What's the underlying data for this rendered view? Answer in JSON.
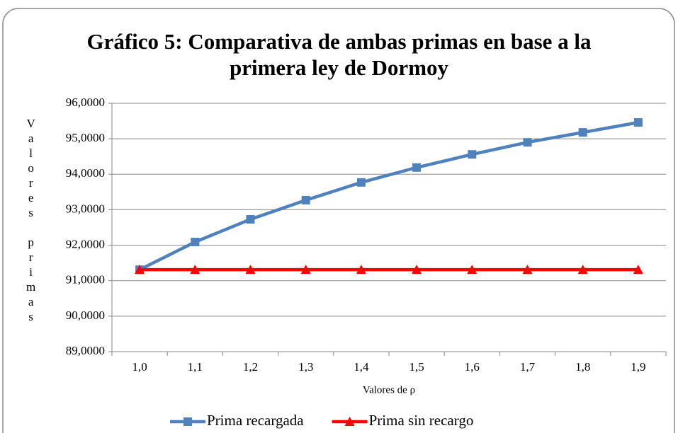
{
  "chart_data": {
    "type": "line",
    "title": "Gráfico 5: Comparativa de ambas primas en base a la primera ley de Dormoy",
    "x_label": "Valores de ρ",
    "y_label": "Valores primas",
    "categories": [
      "1,0",
      "1,1",
      "1,2",
      "1,3",
      "1,4",
      "1,5",
      "1,6",
      "1,7",
      "1,8",
      "1,9"
    ],
    "series": [
      {
        "name": "Prima recargada",
        "color": "#4f81bd",
        "marker": "square",
        "values": [
          91.31,
          92.09,
          92.73,
          93.27,
          93.77,
          94.19,
          94.56,
          94.9,
          95.18,
          95.46
        ]
      },
      {
        "name": "Prima sin recargo",
        "color": "#ff0000",
        "marker": "triangle",
        "values": [
          91.31,
          91.31,
          91.31,
          91.31,
          91.31,
          91.31,
          91.31,
          91.31,
          91.31,
          91.31
        ]
      }
    ],
    "ylim": [
      89,
      96
    ],
    "yticks": [
      {
        "value": 89,
        "label": "89,0000"
      },
      {
        "value": 90,
        "label": "90,0000"
      },
      {
        "value": 91,
        "label": "91,0000"
      },
      {
        "value": 92,
        "label": "92,0000"
      },
      {
        "value": 93,
        "label": "93,0000"
      },
      {
        "value": 94,
        "label": "94,0000"
      },
      {
        "value": 95,
        "label": "95,0000"
      },
      {
        "value": 96,
        "label": "96,0000"
      }
    ],
    "grid": true,
    "legend": "bottom"
  }
}
